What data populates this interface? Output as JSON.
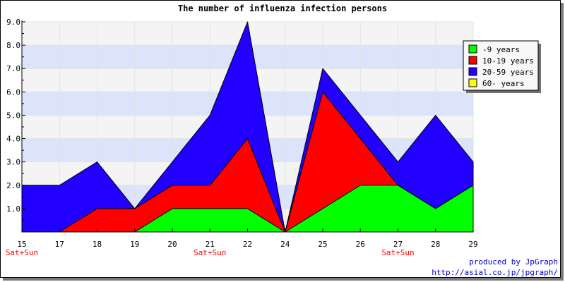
{
  "chart_data": {
    "type": "area",
    "stacked": true,
    "title": "The number of influenza infection persons",
    "categories": [
      "15",
      "17",
      "18",
      "19",
      "20",
      "21",
      "22",
      "24",
      "25",
      "26",
      "27",
      "28",
      "29"
    ],
    "weekend_markers": [
      {
        "category_index": 0,
        "label": "Sat+Sun"
      },
      {
        "category_index": 5,
        "label": "Sat+Sun"
      },
      {
        "category_index": 10,
        "label": "Sat+Sun"
      }
    ],
    "series": [
      {
        "name": "-9 years",
        "color": "#00ff00",
        "values": [
          0,
          0,
          0,
          0,
          1,
          1,
          1,
          0,
          1,
          2,
          2,
          1,
          2
        ]
      },
      {
        "name": "10-19 years",
        "color": "#ff0000",
        "values": [
          0,
          0,
          1,
          1,
          1,
          1,
          3,
          0,
          5,
          2,
          0,
          0,
          0
        ]
      },
      {
        "name": "20-59 years",
        "color": "#2200ff",
        "values": [
          2,
          2,
          2,
          0,
          1,
          3,
          5,
          0,
          1,
          1,
          1,
          4,
          1
        ]
      },
      {
        "name": "60- years",
        "color": "#ffff00",
        "values": [
          0,
          0,
          0,
          0,
          0,
          0,
          0,
          0,
          0,
          0,
          0,
          0,
          0
        ]
      }
    ],
    "y_ticks": [
      "1.0",
      "2.0",
      "3.0",
      "4.0",
      "5.0",
      "6.0",
      "7.0",
      "8.0",
      "9.0"
    ],
    "ylim": [
      0,
      9
    ],
    "grid": true,
    "band_colors": [
      "#f4f4f4",
      "#dce4fc"
    ],
    "legend_position": "top-right"
  },
  "credits": {
    "line1": "produced by JpGraph",
    "line2": "http://asial.co.jp/jpgraph/"
  }
}
